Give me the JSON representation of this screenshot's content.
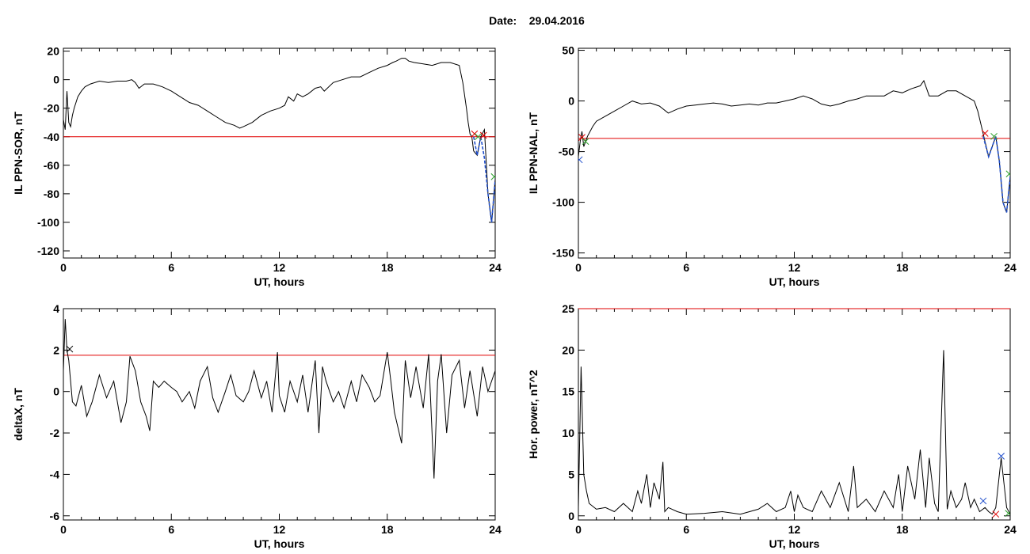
{
  "header": {
    "date_label": "Date:",
    "date_value": "29.04.2016"
  },
  "chart_data": [
    {
      "type": "line",
      "ylabel": "IL PPN-SOR, nT",
      "xlabel": "UT, hours",
      "xlim": [
        0,
        24
      ],
      "ylim": [
        -125,
        22
      ],
      "xticks": [
        0,
        6,
        12,
        18,
        24
      ],
      "yticks": [
        20,
        0,
        -20,
        -40,
        -60,
        -80,
        -100,
        -120
      ],
      "threshold": -40,
      "threshold_color": "#e00000",
      "series": [
        {
          "color": "#000000",
          "x": [
            0,
            0.1,
            0.2,
            0.3,
            0.4,
            0.5,
            0.6,
            0.8,
            1,
            1.2,
            1.5,
            2,
            2.5,
            3,
            3.5,
            3.8,
            4,
            4.2,
            4.5,
            5,
            5.5,
            6,
            6.5,
            7,
            7.5,
            8,
            8.5,
            9,
            9.5,
            9.8,
            10,
            10.5,
            11,
            11.5,
            12,
            12.3,
            12.5,
            12.8,
            13,
            13.3,
            13.6,
            14,
            14.3,
            14.5,
            15,
            15.5,
            16,
            16.5,
            17,
            17.5,
            18,
            18.3,
            18.5,
            18.8,
            19,
            19.2,
            19.5,
            20,
            20.5,
            21,
            21.5,
            22,
            22.2,
            22.4,
            22.5,
            22.6,
            22.7,
            22.8,
            23,
            23.2,
            23.4,
            23.6,
            23.8,
            24
          ],
          "y": [
            -28,
            -35,
            -8,
            -30,
            -33,
            -25,
            -20,
            -12,
            -8,
            -5,
            -3,
            -1,
            -2,
            -1,
            -1,
            0,
            -2,
            -6,
            -3,
            -3,
            -5,
            -8,
            -12,
            -16,
            -18,
            -22,
            -26,
            -30,
            -32,
            -34,
            -33,
            -30,
            -25,
            -22,
            -20,
            -18,
            -12,
            -15,
            -10,
            -12,
            -10,
            -6,
            -5,
            -8,
            -2,
            0,
            2,
            2,
            5,
            8,
            10,
            12,
            13,
            15,
            15,
            13,
            12,
            11,
            10,
            12,
            12,
            10,
            -2,
            -20,
            -30,
            -38,
            -40,
            -50,
            -53,
            -40,
            -35,
            -80,
            -100,
            -70
          ]
        },
        {
          "color": "#1f4ecc",
          "dashed": true,
          "x": [
            22.8,
            23,
            23.2,
            23.4,
            23.6,
            23.8,
            24
          ],
          "y": [
            -40,
            -53,
            -40,
            -55,
            -80,
            -100,
            -70
          ]
        }
      ],
      "markers": [
        {
          "x": 22.85,
          "y": -38,
          "color": "#e00000"
        },
        {
          "x": 23.05,
          "y": -40,
          "color": "#2fa02f"
        },
        {
          "x": 23.35,
          "y": -39,
          "color": "#e00000"
        },
        {
          "x": 23.95,
          "y": -68,
          "color": "#2fa02f"
        }
      ]
    },
    {
      "type": "line",
      "ylabel": "IL PPN-NAL, nT",
      "xlabel": "UT, hours",
      "xlim": [
        0,
        24
      ],
      "ylim": [
        -155,
        52
      ],
      "xticks": [
        0,
        6,
        12,
        18,
        24
      ],
      "yticks": [
        50,
        0,
        -50,
        -100,
        -150
      ],
      "threshold": -37,
      "threshold_color": "#e00000",
      "series": [
        {
          "color": "#000000",
          "x": [
            0,
            0.1,
            0.2,
            0.3,
            0.5,
            0.8,
            1,
            1.5,
            2,
            2.5,
            3,
            3.5,
            4,
            4.5,
            5,
            5.5,
            6,
            6.5,
            7,
            7.5,
            8,
            8.5,
            9,
            9.5,
            10,
            10.5,
            11,
            11.5,
            12,
            12.5,
            13,
            13.5,
            14,
            14.5,
            15,
            15.5,
            16,
            16.5,
            17,
            17.5,
            18,
            18.5,
            19,
            19.2,
            19.5,
            20,
            20.5,
            21,
            21.5,
            22,
            22.2,
            22.4,
            22.6,
            22.8,
            23,
            23.2,
            23.4,
            23.6,
            23.8,
            24
          ],
          "y": [
            -55,
            -40,
            -30,
            -45,
            -35,
            -25,
            -20,
            -15,
            -10,
            -5,
            0,
            -3,
            -2,
            -5,
            -12,
            -8,
            -5,
            -4,
            -3,
            -2,
            -3,
            -5,
            -4,
            -3,
            -4,
            -2,
            -2,
            0,
            2,
            5,
            2,
            -3,
            -5,
            -3,
            0,
            2,
            5,
            5,
            5,
            10,
            8,
            12,
            15,
            20,
            5,
            5,
            10,
            10,
            5,
            0,
            -10,
            -25,
            -40,
            -55,
            -45,
            -35,
            -60,
            -100,
            -110,
            -75
          ]
        },
        {
          "color": "#1f4ecc",
          "dashed": true,
          "x": [
            22.5,
            22.8,
            23,
            23.2,
            23.4,
            23.6,
            23.8,
            24
          ],
          "y": [
            -35,
            -55,
            -45,
            -35,
            -60,
            -100,
            -110,
            -75
          ]
        }
      ],
      "markers": [
        {
          "x": 0.05,
          "y": -58,
          "color": "#1f4ecc"
        },
        {
          "x": 0.2,
          "y": -36,
          "color": "#e00000"
        },
        {
          "x": 0.4,
          "y": -40,
          "color": "#2fa02f"
        },
        {
          "x": 22.6,
          "y": -32,
          "color": "#e00000"
        },
        {
          "x": 23.1,
          "y": -35,
          "color": "#2fa02f"
        },
        {
          "x": 23.95,
          "y": -72,
          "color": "#2fa02f"
        }
      ]
    },
    {
      "type": "line",
      "ylabel": "deltaX, nT",
      "xlabel": "UT, hours",
      "xlim": [
        0,
        24
      ],
      "ylim": [
        -6.2,
        4
      ],
      "xticks": [
        0,
        6,
        12,
        18,
        24
      ],
      "yticks": [
        4,
        2,
        0,
        -2,
        -4,
        -6
      ],
      "threshold": 1.75,
      "threshold_color": "#e00000",
      "series": [
        {
          "color": "#000000",
          "x": [
            0,
            0.1,
            0.2,
            0.3,
            0.5,
            0.7,
            1,
            1.3,
            1.6,
            2,
            2.4,
            2.8,
            3.2,
            3.5,
            3.7,
            4,
            4.3,
            4.6,
            4.8,
            5,
            5.3,
            5.6,
            6,
            6.3,
            6.6,
            7,
            7.3,
            7.6,
            8,
            8.3,
            8.6,
            9,
            9.3,
            9.6,
            10,
            10.3,
            10.6,
            11,
            11.3,
            11.6,
            11.9,
            12,
            12.3,
            12.6,
            13,
            13.3,
            13.6,
            14,
            14.2,
            14.4,
            14.6,
            15,
            15.3,
            15.6,
            16,
            16.3,
            16.6,
            17,
            17.3,
            17.6,
            18,
            18.2,
            18.4,
            18.8,
            19,
            19.3,
            19.6,
            20,
            20.3,
            20.6,
            20.8,
            21,
            21.3,
            21.6,
            22,
            22.3,
            22.6,
            23,
            23.3,
            23.6,
            24
          ],
          "y": [
            1,
            3.5,
            2,
            1.5,
            -0.5,
            -0.7,
            0.3,
            -1.2,
            -0.5,
            0.8,
            -0.3,
            0.5,
            -1.5,
            -0.5,
            1.7,
            1,
            -0.5,
            -1.2,
            -1.9,
            0.5,
            0.2,
            0.5,
            0.2,
            0,
            -0.5,
            0,
            -0.8,
            0.5,
            1.2,
            -0.3,
            -1,
            0,
            0.8,
            -0.2,
            -0.5,
            0,
            1,
            -0.3,
            0.5,
            -1,
            1.9,
            -0.2,
            -1,
            0.5,
            -0.5,
            0.8,
            -1,
            1.5,
            -2,
            1.2,
            0.5,
            -0.5,
            0,
            -0.8,
            0.5,
            -0.5,
            0.8,
            0.2,
            -0.5,
            -0.2,
            1.9,
            0.5,
            -1,
            -2.5,
            1.5,
            -0.3,
            1.2,
            -0.8,
            1.8,
            -4.2,
            0.5,
            1.8,
            -2,
            0.8,
            1.5,
            -0.8,
            1,
            -1.2,
            1.2,
            0,
            1
          ]
        }
      ],
      "markers": [
        {
          "x": 0.35,
          "y": 2.05,
          "color": "#000000"
        }
      ]
    },
    {
      "type": "line",
      "ylabel": "Hor. power, nT^2",
      "xlabel": "UT, hours",
      "xlim": [
        0,
        24
      ],
      "ylim": [
        -0.5,
        25
      ],
      "xticks": [
        0,
        6,
        12,
        18,
        24
      ],
      "yticks": [
        25,
        20,
        15,
        10,
        5,
        0
      ],
      "threshold": 25,
      "threshold_color": "#e00000",
      "series": [
        {
          "color": "#000000",
          "x": [
            0,
            0.15,
            0.3,
            0.45,
            0.6,
            1,
            1.5,
            2,
            2.5,
            3,
            3.3,
            3.5,
            3.8,
            4,
            4.2,
            4.5,
            4.7,
            4.8,
            5,
            5.5,
            6,
            7,
            8,
            9,
            10,
            10.5,
            11,
            11.5,
            11.8,
            12,
            12.2,
            12.5,
            13,
            13.5,
            14,
            14.5,
            15,
            15.3,
            15.5,
            16,
            16.5,
            17,
            17.5,
            17.8,
            18,
            18.3,
            18.7,
            19,
            19.3,
            19.5,
            19.8,
            20,
            20.3,
            20.5,
            20.7,
            21,
            21.3,
            21.5,
            21.8,
            22,
            22.3,
            22.6,
            22.8,
            23,
            23.2,
            23.5,
            23.8,
            24
          ],
          "y": [
            1,
            18,
            5,
            3,
            1.5,
            0.8,
            1,
            0.5,
            1.5,
            0.5,
            3,
            1.5,
            5,
            1,
            4,
            2,
            6.5,
            0.5,
            1,
            0.5,
            0.2,
            0.3,
            0.5,
            0.2,
            0.8,
            1.5,
            0.5,
            1,
            3,
            0.5,
            2.5,
            1,
            0.5,
            3,
            1,
            4,
            0.5,
            6,
            1,
            2,
            0.5,
            3,
            1,
            5,
            0.5,
            6,
            2,
            8,
            1,
            7,
            1.5,
            0.5,
            20,
            0.8,
            3,
            1,
            2,
            4,
            1,
            2,
            0.5,
            1,
            0.5,
            0.2,
            1,
            7,
            1,
            0.2
          ]
        }
      ],
      "markers": [
        {
          "x": 22.5,
          "y": 1.8,
          "color": "#1f4ecc"
        },
        {
          "x": 23.2,
          "y": 0.2,
          "color": "#e00000"
        },
        {
          "x": 23.5,
          "y": 7.2,
          "color": "#1f4ecc"
        },
        {
          "x": 23.9,
          "y": 0.3,
          "color": "#2fa02f"
        }
      ]
    }
  ]
}
